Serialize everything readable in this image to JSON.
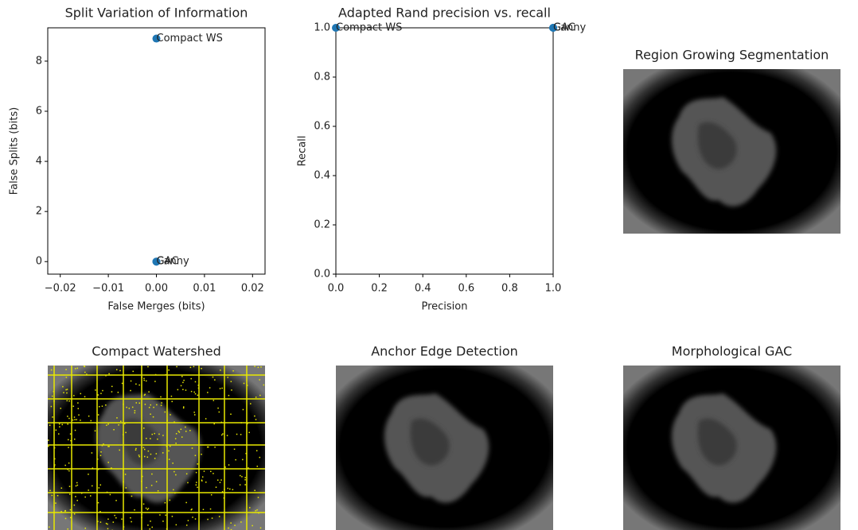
{
  "chart_data": [
    {
      "type": "scatter",
      "title": "Split Variation of Information",
      "xlabel": "False Merges (bits)",
      "ylabel": "False Splits (bits)",
      "x": [
        0,
        0,
        0
      ],
      "values": [
        8.9,
        0,
        0
      ],
      "labels": [
        "Compact WS",
        "Canny",
        "GAC"
      ],
      "color": "#1f77b4",
      "xlim": [
        -0.0226,
        0.0226
      ],
      "ylim": [
        -0.5,
        9.33
      ],
      "xticks": [
        {
          "value": -0.02,
          "label": "−0.02"
        },
        {
          "value": -0.01,
          "label": "−0.01"
        },
        {
          "value": 0,
          "label": "0.00"
        },
        {
          "value": 0.01,
          "label": "0.01"
        },
        {
          "value": 0.02,
          "label": "0.02"
        }
      ],
      "yticks": [
        0,
        2,
        4,
        6,
        8
      ]
    },
    {
      "type": "scatter",
      "title": "Adapted Rand precision vs. recall",
      "xlabel": "Precision",
      "ylabel": "Recall",
      "x": [
        0,
        1,
        1
      ],
      "values": [
        1,
        1,
        1
      ],
      "labels": [
        "Compact WS",
        "Canny",
        "GAC"
      ],
      "color": "#1f77b4",
      "xlim": [
        0,
        1
      ],
      "ylim": [
        0,
        1
      ],
      "xticks": [
        {
          "value": 0,
          "label": "0.0"
        },
        0.2,
        0.4,
        0.6,
        0.8,
        {
          "value": 1,
          "label": "1.0"
        }
      ],
      "yticks": [
        {
          "value": 0,
          "label": "0.0"
        },
        0.2,
        0.4,
        0.6,
        0.8,
        {
          "value": 1,
          "label": "1.0"
        }
      ]
    }
  ],
  "images": [
    {
      "title": "Region Growing Segmentation"
    },
    {
      "title": "Compact Watershed"
    },
    {
      "title": "Anchor Edge Detection"
    },
    {
      "title": "Morphological GAC"
    }
  ]
}
